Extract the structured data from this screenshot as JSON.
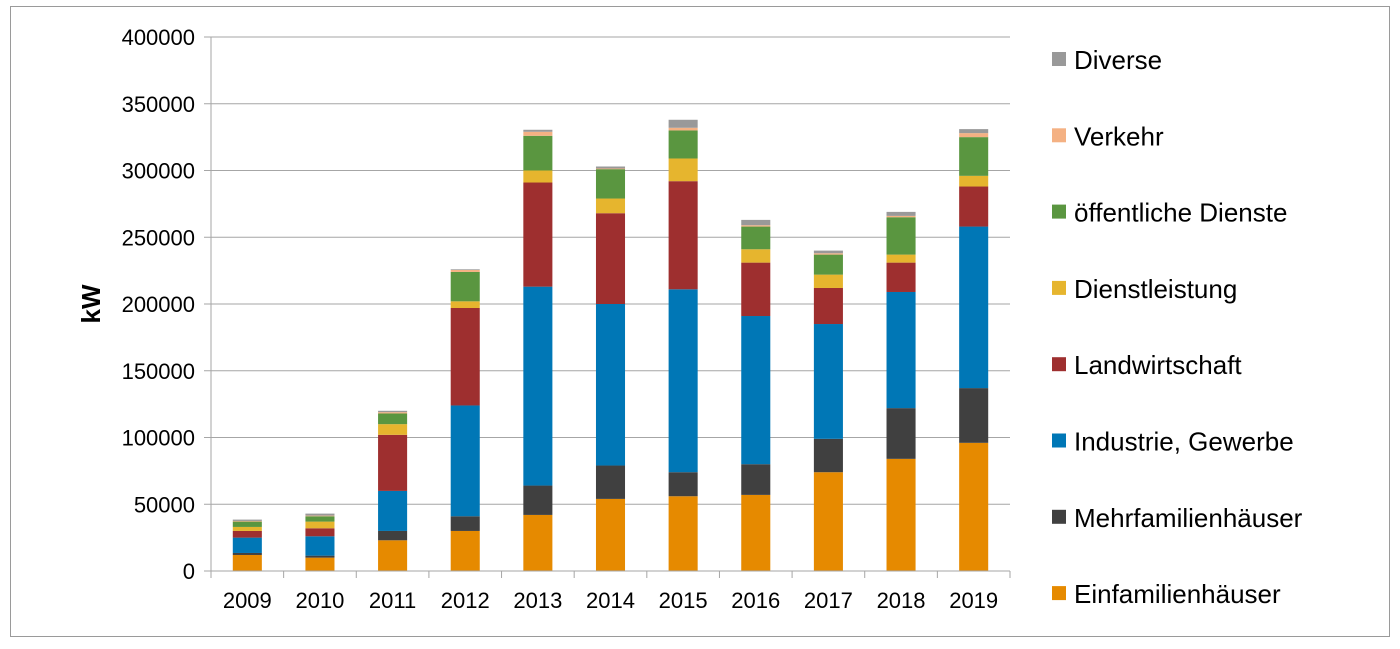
{
  "chart_data": {
    "type": "bar",
    "stacked": true,
    "title": "",
    "xlabel": "",
    "ylabel": "kW",
    "ylim": [
      0,
      400000
    ],
    "yticks": [
      0,
      50000,
      100000,
      150000,
      200000,
      250000,
      300000,
      350000,
      400000
    ],
    "grid": true,
    "legend_position": "right",
    "categories": [
      "2009",
      "2010",
      "2011",
      "2012",
      "2013",
      "2014",
      "2015",
      "2016",
      "2017",
      "2018",
      "2019"
    ],
    "series": [
      {
        "name": "Einfamilienhäuser",
        "color": "#e68a00",
        "values": [
          12000,
          10000,
          23000,
          30000,
          42000,
          54000,
          56000,
          57000,
          74000,
          84000,
          96000
        ]
      },
      {
        "name": "Mehrfamilienhäuser",
        "color": "#404040",
        "values": [
          1500,
          1500,
          7000,
          11000,
          22000,
          25000,
          18000,
          23000,
          25000,
          38000,
          41000
        ]
      },
      {
        "name": "Industrie, Gewerbe",
        "color": "#0077b6",
        "values": [
          11500,
          14500,
          30000,
          83000,
          149000,
          121000,
          137000,
          111000,
          86000,
          87000,
          121000
        ]
      },
      {
        "name": "Landwirtschaft",
        "color": "#9e2f2f",
        "values": [
          5000,
          6000,
          42000,
          73000,
          78000,
          68000,
          81000,
          40000,
          27000,
          22000,
          30000
        ]
      },
      {
        "name": "Dienstleistung",
        "color": "#e6b52e",
        "values": [
          3000,
          5000,
          8000,
          5000,
          9000,
          11000,
          17000,
          10000,
          10000,
          6000,
          8000
        ]
      },
      {
        "name": "öffentliche Dienste",
        "color": "#5a9640",
        "values": [
          4000,
          4000,
          8000,
          22000,
          26000,
          22000,
          21000,
          17000,
          15000,
          28000,
          29000
        ]
      },
      {
        "name": "Verkehr",
        "color": "#f4b183",
        "values": [
          500,
          500,
          1000,
          1500,
          3000,
          500,
          2000,
          1000,
          1000,
          1000,
          3000
        ]
      },
      {
        "name": "Diverse",
        "color": "#999999",
        "values": [
          1000,
          1500,
          1000,
          500,
          1500,
          1500,
          6000,
          4000,
          2000,
          3000,
          3000
        ]
      }
    ]
  }
}
